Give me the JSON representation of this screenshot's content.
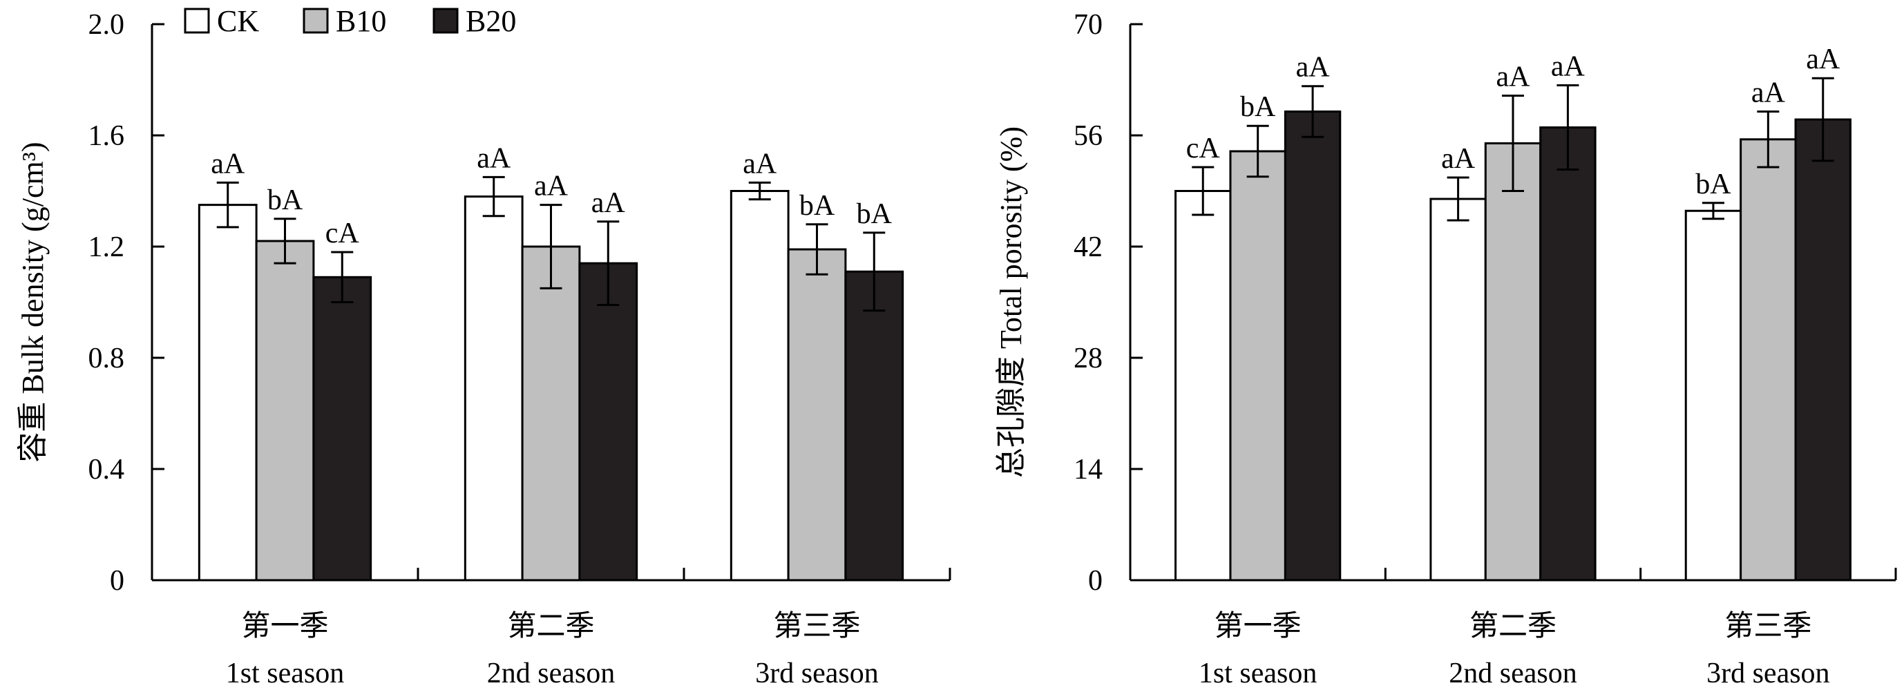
{
  "colors": {
    "CK": "#ffffff",
    "B10": "#bfbfbf",
    "B20": "#231f20",
    "stroke": "#000000"
  },
  "legend": {
    "items": [
      "CK",
      "B10",
      "B20"
    ],
    "placement": "top-left"
  },
  "chart_data": [
    {
      "type": "bar",
      "ylabel": "容重 Bulk density (g/cm³)",
      "ylim": [
        0,
        2.0
      ],
      "yticks": [
        "0",
        "0.4",
        "0.8",
        "1.2",
        "1.6",
        "2.0"
      ],
      "categories": [
        {
          "cn": "第一季",
          "en": "1st season"
        },
        {
          "cn": "第二季",
          "en": "2nd season"
        },
        {
          "cn": "第三季",
          "en": "3rd season"
        }
      ],
      "series": [
        {
          "name": "CK",
          "values": [
            1.35,
            1.38,
            1.4
          ],
          "errors": [
            0.08,
            0.07,
            0.03
          ],
          "labels": [
            "aA",
            "aA",
            "aA"
          ]
        },
        {
          "name": "B10",
          "values": [
            1.22,
            1.2,
            1.19
          ],
          "errors": [
            0.08,
            0.15,
            0.09
          ],
          "labels": [
            "bA",
            "aA",
            "bA"
          ]
        },
        {
          "name": "B20",
          "values": [
            1.09,
            1.14,
            1.11
          ],
          "errors": [
            0.09,
            0.15,
            0.14
          ],
          "labels": [
            "cA",
            "aA",
            "bA"
          ]
        }
      ]
    },
    {
      "type": "bar",
      "ylabel": "总孔隙度 Total porosity (%)",
      "ylim": [
        0,
        70
      ],
      "yticks": [
        "0",
        "14",
        "28",
        "42",
        "56",
        "70"
      ],
      "categories": [
        {
          "cn": "第一季",
          "en": "1st season"
        },
        {
          "cn": "第二季",
          "en": "2nd season"
        },
        {
          "cn": "第三季",
          "en": "3rd season"
        }
      ],
      "series": [
        {
          "name": "CK",
          "values": [
            49.0,
            48.0,
            46.5
          ],
          "errors": [
            3.0,
            2.7,
            1.0
          ],
          "labels": [
            "cA",
            "aA",
            "bA"
          ]
        },
        {
          "name": "B10",
          "values": [
            54.0,
            55.0,
            55.5
          ],
          "errors": [
            3.2,
            6.0,
            3.5
          ],
          "labels": [
            "bA",
            "aA",
            "aA"
          ]
        },
        {
          "name": "B20",
          "values": [
            59.0,
            57.0,
            58.0
          ],
          "errors": [
            3.2,
            5.3,
            5.2
          ],
          "labels": [
            "aA",
            "aA",
            "aA"
          ]
        }
      ]
    }
  ]
}
